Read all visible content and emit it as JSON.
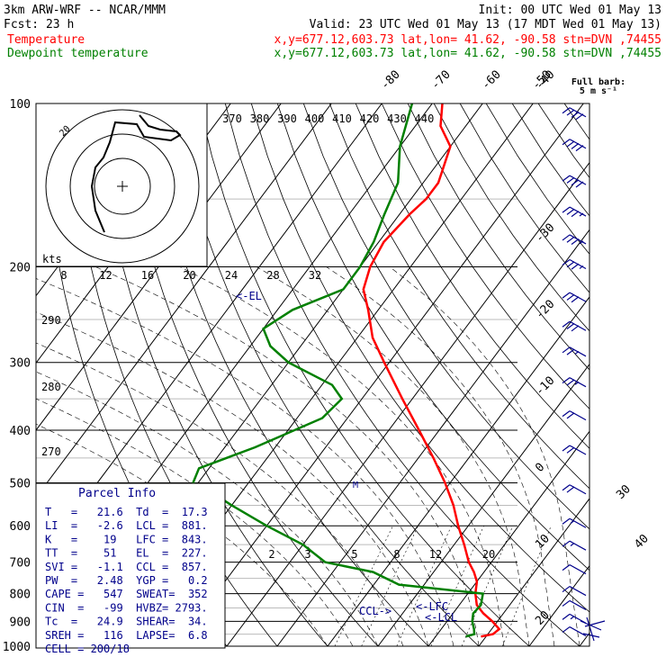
{
  "header": {
    "line1_left": "3km ARW-WRF -- NCAR/MMM",
    "line1_right": "Init: 00 UTC Wed 01 May 13",
    "line2_left": "Fcst:   23 h",
    "line2_right": "Valid: 23 UTC Wed 01 May 13 (17 MDT Wed 01 May 13)",
    "line3_left": "Temperature",
    "line3_right": "x,y=677.12,603.73   lat,lon= 41.62, -90.58  stn=DVN ,74455",
    "line4_left": "Dewpoint temperature",
    "line4_right": "x,y=677.12,603.73   lat,lon= 41.62, -90.58  stn=DVN ,74455",
    "barb_note_1": "Full barb:",
    "barb_note_2": "5 m s⁻¹"
  },
  "colors": {
    "temperature": "#ff0000",
    "dewpoint": "#008000",
    "annotation": "#00008b",
    "wind": "#00008b",
    "grid": "#000000"
  },
  "pressure_labels": [
    "100",
    "200",
    "300",
    "400",
    "500",
    "600",
    "700",
    "800",
    "900",
    "1000"
  ],
  "skewed_temp_labels": [
    "-80",
    "-70",
    "-60",
    "-50",
    "-40",
    "-30",
    "-20",
    "-10",
    "0",
    "10",
    "20",
    "30",
    "40"
  ],
  "theta_labels": [
    "370",
    "380",
    "390",
    "400",
    "410",
    "420",
    "430",
    "440"
  ],
  "theta_e_labels": [
    "290",
    "280",
    "270"
  ],
  "mixing_ratio_labels": [
    "2",
    "3",
    "5",
    "8",
    "12",
    "20"
  ],
  "hodograph": {
    "kts_label": "kts",
    "speed_labels": [
      "8",
      "12",
      "16",
      "20",
      "24",
      "28",
      "32"
    ],
    "ring_label": "20"
  },
  "markers": {
    "el": "<-EL",
    "lfc": "<-LFC",
    "lcl": "<-LCL",
    "ccl": "CCL->",
    "small_label": "M"
  },
  "parcel_info": {
    "title": "Parcel Info",
    "rows": [
      "T   =   21.6  Td  =  17.3",
      "LI  =   -2.6  LCL =  881.",
      "K   =    19   LFC =  843.",
      "TT  =    51   EL  =  227.",
      "SVI =   -1.1  CCL =  857.",
      "PW  =   2.48  YGP =   0.2",
      "CAPE =   547  SWEAT=  352",
      "CIN  =   -99  HVBZ= 2793.",
      "Tc  =   24.9  SHEAR=  34.",
      "SREH =   116  LAPSE=  6.8",
      "CELL = 200/18"
    ]
  },
  "chart_data": {
    "type": "line",
    "subtype": "skew-T log-P sounding",
    "ylabel": "",
    "xlabel": "",
    "pressure_range_hPa": [
      1000,
      100
    ],
    "temperature_range_degC": [
      -40,
      40
    ],
    "y_scale": "log (inverted)",
    "series": [
      {
        "name": "Temperature",
        "pressure_hPa": [
          960,
          950,
          930,
          900,
          870,
          840,
          800,
          760,
          730,
          700,
          650,
          600,
          550,
          500,
          450,
          400,
          350,
          300,
          270,
          240,
          220,
          200,
          180,
          160,
          150,
          140,
          120,
          110,
          100
        ],
        "temperature_degC": [
          19,
          21,
          21.5,
          19,
          16,
          13.5,
          11.5,
          10,
          8,
          5.5,
          2,
          -2,
          -6,
          -11,
          -17,
          -24,
          -32,
          -41,
          -47,
          -52,
          -56,
          -58,
          -59,
          -58,
          -57,
          -57,
          -60,
          -65,
          -68
        ]
      },
      {
        "name": "Dewpoint temperature",
        "pressure_hPa": [
          960,
          950,
          930,
          900,
          870,
          840,
          800,
          770,
          730,
          700,
          650,
          600,
          550,
          520,
          500,
          470,
          430,
          380,
          350,
          330,
          300,
          280,
          260,
          240,
          220,
          200,
          180,
          160,
          140,
          120,
          100
        ],
        "temperature_degC": [
          16,
          17.3,
          16.5,
          15,
          14,
          14.3,
          13,
          -5,
          -12,
          -23,
          -30,
          -40,
          -50,
          -56,
          -61,
          -62,
          -54,
          -45,
          -44,
          -48,
          -60,
          -66,
          -70,
          -67,
          -60,
          -60,
          -61,
          -63,
          -65,
          -70,
          -74
        ]
      }
    ],
    "wind_barbs_pressure_hPa": [
      105,
      120,
      140,
      160,
      180,
      200,
      230,
      260,
      290,
      330,
      380,
      440,
      520,
      600,
      660,
      730,
      800,
      850,
      900,
      950
    ],
    "wind_barbs_knots": [
      40,
      40,
      40,
      35,
      35,
      35,
      30,
      30,
      25,
      25,
      20,
      20,
      20,
      15,
      15,
      10,
      10,
      10,
      15,
      10
    ],
    "grid": true
  }
}
